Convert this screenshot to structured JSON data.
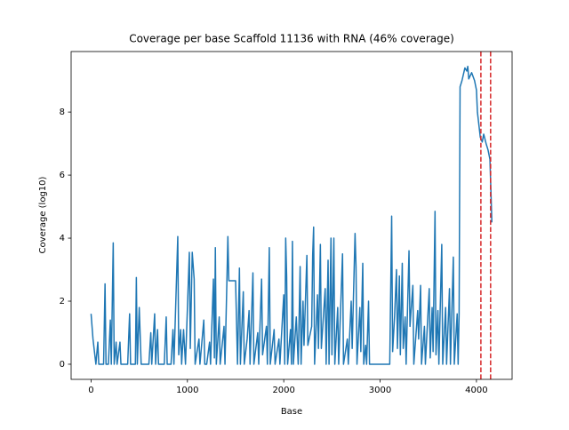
{
  "chart_data": {
    "type": "line",
    "title": "Coverage per base Scaffold 11136 with RNA (46% coverage)",
    "x_label": "Base",
    "y_label": "Coverage (log10)",
    "xlim": [
      -207,
      4370
    ],
    "ylim": [
      -0.48,
      9.92
    ],
    "xticks": [
      0,
      1000,
      2000,
      3000,
      4000
    ],
    "yticks": [
      0,
      2,
      4,
      6,
      8
    ],
    "vlines": [
      {
        "value": 4046,
        "color": "#d62728"
      },
      {
        "value": 4147,
        "color": "#d62728"
      }
    ],
    "x": [
      0,
      20,
      50,
      70,
      80,
      130,
      145,
      155,
      180,
      200,
      210,
      230,
      240,
      260,
      270,
      300,
      310,
      380,
      400,
      410,
      460,
      470,
      480,
      500,
      520,
      600,
      620,
      630,
      660,
      670,
      690,
      700,
      760,
      780,
      790,
      830,
      850,
      860,
      900,
      910,
      930,
      940,
      960,
      980,
      1020,
      1030,
      1050,
      1070,
      1080,
      1120,
      1130,
      1170,
      1180,
      1200,
      1230,
      1240,
      1270,
      1280,
      1290,
      1300,
      1330,
      1340,
      1380,
      1390,
      1410,
      1420,
      1430,
      1500,
      1520,
      1540,
      1550,
      1580,
      1590,
      1620,
      1640,
      1650,
      1680,
      1690,
      1730,
      1740,
      1770,
      1780,
      1820,
      1830,
      1850,
      1860,
      1900,
      1910,
      1950,
      1960,
      2000,
      2010,
      2020,
      2030,
      2040,
      2070,
      2080,
      2090,
      2100,
      2130,
      2150,
      2170,
      2180,
      2200,
      2210,
      2240,
      2250,
      2290,
      2300,
      2310,
      2320,
      2350,
      2360,
      2380,
      2390,
      2430,
      2440,
      2460,
      2470,
      2490,
      2500,
      2520,
      2530,
      2560,
      2570,
      2610,
      2620,
      2660,
      2670,
      2700,
      2710,
      2740,
      2750,
      2760,
      2790,
      2800,
      2820,
      2830,
      2850,
      2860,
      2880,
      2890,
      2930,
      2950,
      3000,
      3060,
      3100,
      3120,
      3130,
      3150,
      3170,
      3180,
      3200,
      3210,
      3230,
      3240,
      3260,
      3270,
      3300,
      3310,
      3340,
      3350,
      3390,
      3400,
      3420,
      3430,
      3460,
      3470,
      3510,
      3520,
      3540,
      3550,
      3570,
      3580,
      3600,
      3610,
      3640,
      3650,
      3680,
      3690,
      3720,
      3730,
      3760,
      3770,
      3800,
      3810,
      3820,
      3830,
      3850,
      3880,
      3900,
      3910,
      3920,
      3950,
      3980,
      4000,
      4010,
      4040,
      4060,
      4075,
      4100,
      4120,
      4140,
      4150,
      4160
    ],
    "series": [
      {
        "name": "coverage",
        "color": "#1f77b4",
        "values": [
          1.6,
          0.8,
          0,
          0.7,
          0,
          0,
          2.55,
          0,
          0,
          1.4,
          0,
          3.85,
          0,
          0.7,
          0,
          0.7,
          0,
          0,
          1.6,
          0,
          0,
          2.75,
          0,
          1.8,
          0,
          0,
          1.0,
          0,
          1.6,
          0,
          1.1,
          0,
          0,
          1.5,
          0,
          0,
          1.1,
          0,
          4.05,
          0.3,
          1.1,
          0,
          1.1,
          0,
          3.55,
          0.5,
          3.55,
          2.7,
          0,
          0.8,
          0,
          1.4,
          0,
          0,
          0.7,
          0,
          2.7,
          0.2,
          3.7,
          0,
          1.5,
          0,
          1.2,
          0,
          2.65,
          4.05,
          2.65,
          2.65,
          0,
          3.05,
          0,
          2.3,
          0,
          0.8,
          1.7,
          0,
          2.9,
          0,
          1.0,
          0,
          2.7,
          0.3,
          1.2,
          0,
          3.7,
          0,
          1.1,
          0,
          0.8,
          0,
          2.2,
          0,
          4.0,
          2.8,
          0,
          1.1,
          0,
          3.9,
          0,
          1.5,
          0,
          3.1,
          0,
          2.0,
          0.6,
          3.45,
          0.6,
          1.2,
          3.45,
          4.35,
          0,
          2.2,
          0.5,
          3.8,
          0.5,
          2.4,
          0,
          3.3,
          0,
          4.0,
          0.3,
          4.0,
          0,
          1.8,
          0,
          3.5,
          0,
          0.8,
          0,
          2.0,
          0.5,
          4.15,
          3.1,
          0,
          1.8,
          0.4,
          3.2,
          0,
          0.6,
          0,
          2.0,
          0,
          0,
          0,
          0,
          0,
          0,
          4.7,
          0.4,
          1.5,
          3.0,
          0.5,
          2.8,
          0.3,
          3.2,
          0.5,
          1.5,
          0,
          3.6,
          1.2,
          2.5,
          0,
          1.7,
          0.8,
          2.5,
          0,
          1.2,
          0,
          2.4,
          0.2,
          1.8,
          0.4,
          4.85,
          0.3,
          1.7,
          0,
          3.8,
          0,
          1.8,
          0,
          2.4,
          0,
          3.4,
          0,
          1.6,
          0,
          1.6,
          8.8,
          9.0,
          9.4,
          9.3,
          9.45,
          9.05,
          9.25,
          9.0,
          8.7,
          8.0,
          7.2,
          7.05,
          7.3,
          7.0,
          6.8,
          6.5,
          5.5,
          4.5
        ]
      }
    ]
  }
}
